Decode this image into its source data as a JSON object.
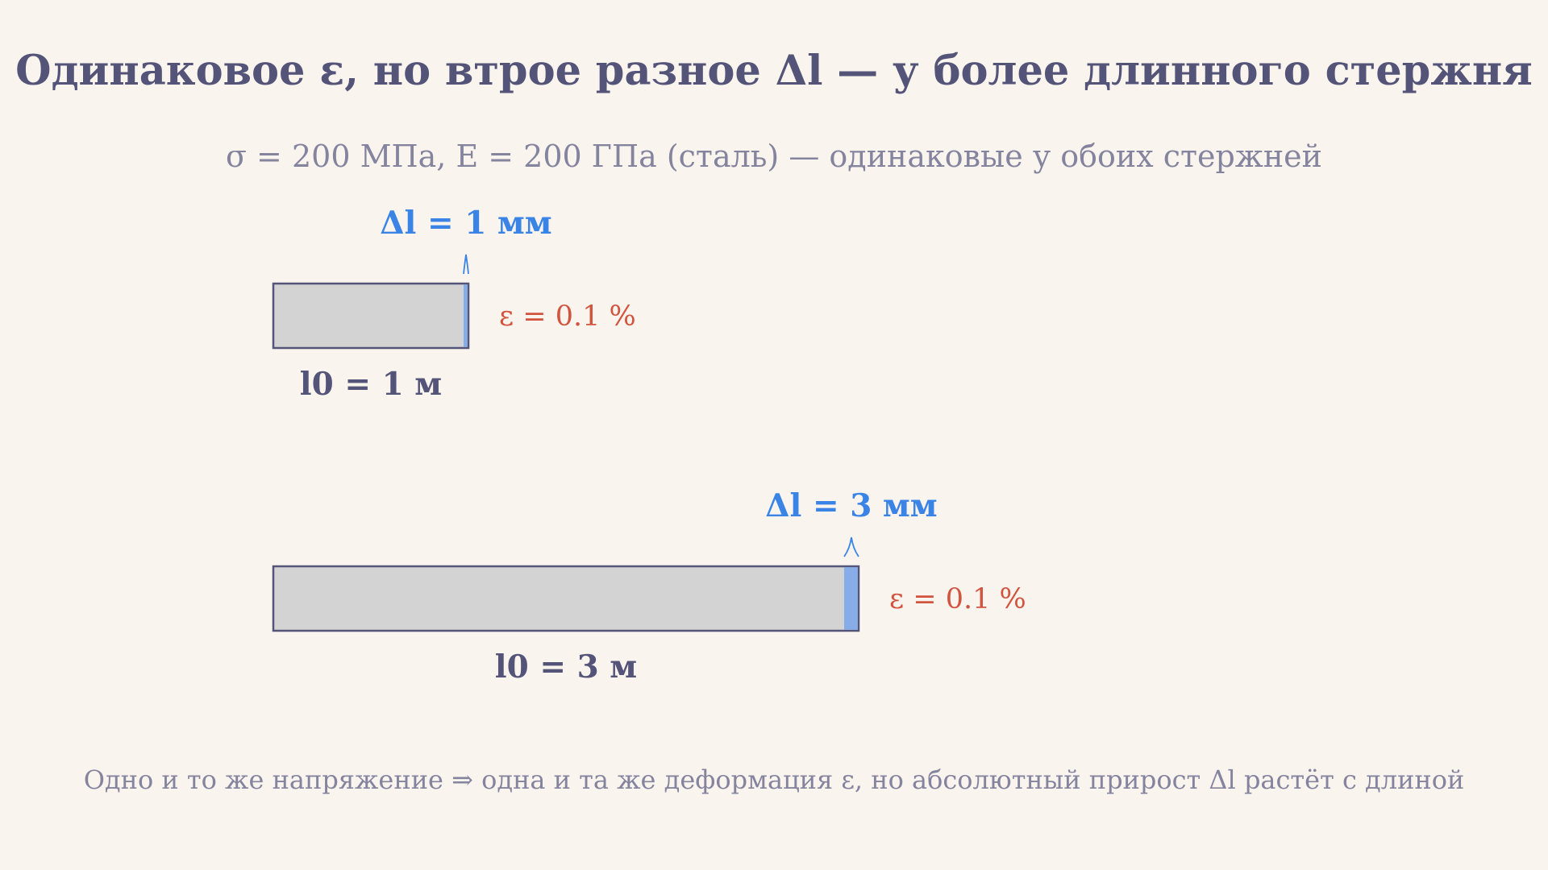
{
  "title": "Одинаковое ε, но втрое разное Δl — у более длинного стержня",
  "subtitle": "σ = 200 МПа, E = 200 ГПа (сталь) — одинаковые у обоих стержней",
  "footer": "Одно и то же напряжение ⇒ одна и та же деформация ε, но абсолютный прирост Δl растёт с длиной",
  "colors": {
    "background": "#faf4ef",
    "rod_fill": "#d3d3d3",
    "rod_stroke": "#545479",
    "elongation": "#86ade8",
    "delta_label": "#3a84e6",
    "strain_label": "#d2543f",
    "length_label": "#545479"
  },
  "rods": [
    {
      "length_m": 1,
      "elongation_mm": 1,
      "delta_label": "Δl = 1 мм",
      "strain_label": "ε = 0.1 %",
      "length_label": "l0 = 1 м"
    },
    {
      "length_m": 3,
      "elongation_mm": 3,
      "delta_label": "Δl = 3 мм",
      "strain_label": "ε = 0.1 %",
      "length_label": "l0 = 3 м"
    }
  ]
}
